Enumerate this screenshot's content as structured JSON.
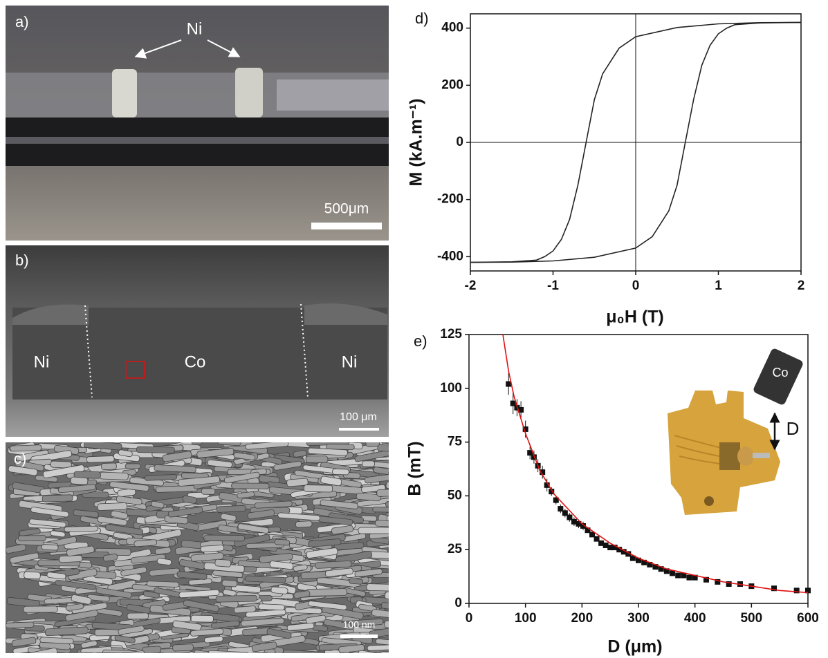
{
  "panels": {
    "a": {
      "label": "a)",
      "material": "Ni",
      "scale": "500μm"
    },
    "b": {
      "label": "b)",
      "left": "Ni",
      "middle": "Co",
      "right": "Ni",
      "scale": "100 μm"
    },
    "c": {
      "label": "c)",
      "scale": "100 nm"
    }
  },
  "chart_data": [
    {
      "type": "line",
      "label": "d)",
      "xlabel": "μ₀H (T)",
      "ylabel": "M (kA.m⁻¹)",
      "xlim": [
        -2,
        2
      ],
      "xticks": [
        -2,
        -1,
        0,
        1,
        2
      ],
      "ylim": [
        -450,
        450
      ],
      "yticks": [
        -400,
        -200,
        0,
        200,
        400
      ],
      "zero_lines": true,
      "series": [
        {
          "color": "#222222",
          "x": [
            2,
            1.5,
            1,
            0.5,
            0,
            -0.2,
            -0.4,
            -0.5,
            -0.6,
            -0.7,
            -0.8,
            -0.9,
            -1,
            -1.1,
            -1.2,
            -1.5,
            -2
          ],
          "values": [
            420,
            419,
            415,
            402,
            370,
            330,
            240,
            150,
            0,
            -150,
            -270,
            -340,
            -380,
            -400,
            -412,
            -418,
            -420
          ]
        },
        {
          "color": "#222222",
          "x": [
            -2,
            -1.5,
            -1,
            -0.5,
            0,
            0.2,
            0.4,
            0.5,
            0.6,
            0.7,
            0.8,
            0.9,
            1,
            1.1,
            1.2,
            1.5,
            2
          ],
          "values": [
            -420,
            -419,
            -415,
            -402,
            -370,
            -330,
            -240,
            -150,
            0,
            150,
            270,
            340,
            380,
            400,
            412,
            418,
            420
          ]
        }
      ]
    },
    {
      "type": "scatter",
      "label": "e)",
      "xlabel": "D (μm)",
      "ylabel": "B (mT)",
      "xlim": [
        0,
        600
      ],
      "xticks": [
        0,
        100,
        200,
        300,
        400,
        500,
        600
      ],
      "ylim": [
        0,
        125
      ],
      "yticks": [
        0,
        25,
        50,
        75,
        100,
        125
      ],
      "annotations": [
        "Co",
        "D"
      ],
      "series": [
        {
          "type": "scatter",
          "color": "#111111",
          "x": [
            70,
            78,
            85,
            92,
            100,
            108,
            115,
            122,
            130,
            138,
            146,
            154,
            162,
            170,
            178,
            186,
            194,
            202,
            210,
            218,
            226,
            234,
            242,
            250,
            258,
            266,
            274,
            282,
            290,
            300,
            310,
            320,
            330,
            340,
            350,
            360,
            370,
            380,
            390,
            400,
            420,
            440,
            460,
            480,
            500,
            540,
            580,
            600
          ],
          "values": [
            102,
            93,
            91,
            90,
            81,
            70,
            68,
            64,
            61,
            55,
            52,
            48,
            44,
            42,
            40,
            38,
            37,
            36,
            34,
            32,
            30,
            28,
            27,
            26,
            26,
            25,
            24,
            23,
            21,
            20,
            19,
            18,
            17,
            16,
            15,
            14,
            13,
            13,
            12,
            12,
            11,
            10,
            9,
            9,
            8,
            7,
            6,
            6
          ],
          "errors": [
            5,
            5,
            4,
            4,
            4,
            3,
            3,
            3,
            3,
            3,
            2,
            2,
            2,
            2,
            2,
            2,
            2,
            2,
            1,
            1,
            1,
            1,
            1,
            1,
            1,
            1,
            1,
            1,
            1,
            1,
            1,
            1,
            1,
            1,
            1,
            1,
            1,
            1,
            1,
            1,
            1,
            1,
            1,
            1,
            1,
            1,
            1,
            1
          ]
        },
        {
          "type": "line",
          "color": "#e01010",
          "x": [
            60,
            70,
            80,
            100,
            125,
            150,
            200,
            250,
            300,
            350,
            400,
            450,
            500,
            550,
            600
          ],
          "values": [
            125,
            108,
            96,
            79,
            62,
            51,
            37,
            28,
            21,
            16,
            13,
            10,
            8,
            6,
            5
          ]
        }
      ]
    }
  ]
}
